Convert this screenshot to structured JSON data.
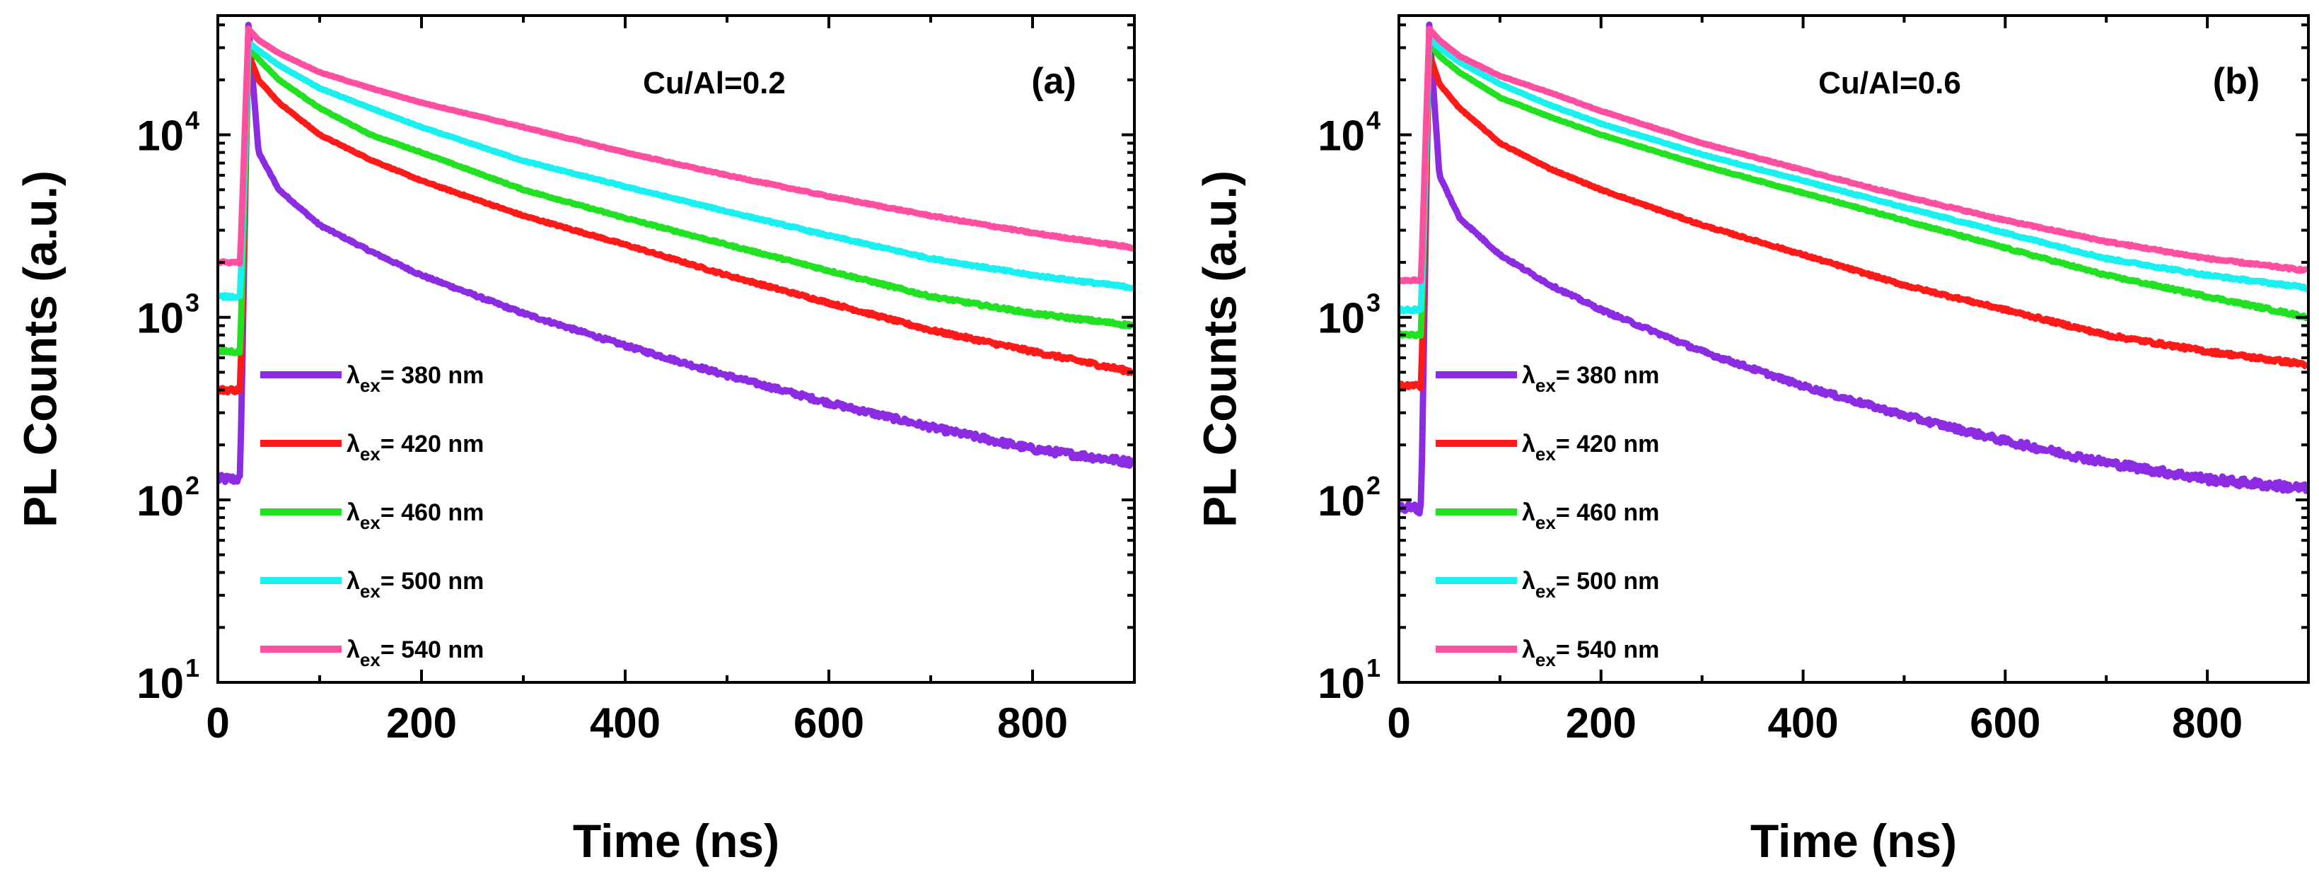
{
  "chart_data": [
    {
      "type": "line",
      "panel_label": "(a)",
      "annotation": "Cu/Al=0.2",
      "xlabel": "Time (ns)",
      "ylabel": "PL Counts (a.u.)",
      "yscale": "log",
      "xlim": [
        0,
        900
      ],
      "ylim": [
        10,
        45000
      ],
      "xticks": [
        {
          "value": 0,
          "label": "0"
        },
        {
          "value": 200,
          "label": "200"
        },
        {
          "value": 400,
          "label": "400"
        },
        {
          "value": 600,
          "label": "600"
        },
        {
          "value": 800,
          "label": "800"
        }
      ],
      "yticks": [
        {
          "value": 10,
          "base": "10",
          "exp": "1"
        },
        {
          "value": 100,
          "base": "10",
          "exp": "2"
        },
        {
          "value": 1000,
          "base": "10",
          "exp": "3"
        },
        {
          "value": 10000,
          "base": "10",
          "exp": "4"
        }
      ],
      "series": [
        {
          "name_prefix": "λ",
          "name_sub": "ex",
          "name_rest": "= 380 nm",
          "color": "#8B2BE2",
          "baseline": 130,
          "peak": 40000,
          "rise_start": 22,
          "rise_end": 29,
          "x": [
            30,
            40,
            60,
            100,
            150,
            200,
            300,
            400,
            500,
            600,
            700,
            800,
            900
          ],
          "values": [
            40000,
            8000,
            5000,
            3200,
            2300,
            1700,
            1050,
            700,
            480,
            340,
            250,
            190,
            160
          ]
        },
        {
          "name_prefix": "λ",
          "name_sub": "ex",
          "name_rest": "= 420 nm",
          "color": "#FF1A1A",
          "baseline": 400,
          "peak": 28000,
          "rise_start": 22,
          "rise_end": 29,
          "x": [
            30,
            40,
            60,
            100,
            150,
            200,
            300,
            400,
            500,
            600,
            700,
            800,
            900
          ],
          "values": [
            28000,
            20000,
            15000,
            10000,
            7300,
            5600,
            3600,
            2500,
            1700,
            1200,
            850,
            650,
            500
          ]
        },
        {
          "name_prefix": "λ",
          "name_sub": "ex",
          "name_rest": "= 460 nm",
          "color": "#22E022",
          "baseline": 650,
          "peak": 30000,
          "rise_start": 22,
          "rise_end": 29,
          "x": [
            30,
            40,
            60,
            100,
            150,
            200,
            300,
            400,
            500,
            600,
            700,
            800,
            900
          ],
          "values": [
            30000,
            26000,
            20000,
            14000,
            10000,
            8000,
            5000,
            3500,
            2500,
            1800,
            1300,
            1050,
            900
          ]
        },
        {
          "name_prefix": "λ",
          "name_sub": "ex",
          "name_rest": "= 500 nm",
          "color": "#1AF0F0",
          "baseline": 1300,
          "peak": 32000,
          "rise_start": 22,
          "rise_end": 29,
          "x": [
            30,
            40,
            60,
            100,
            150,
            200,
            300,
            400,
            500,
            600,
            700,
            800,
            900
          ],
          "values": [
            32000,
            29000,
            24000,
            18000,
            14000,
            11000,
            7200,
            5200,
            3800,
            2800,
            2100,
            1700,
            1450
          ]
        },
        {
          "name_prefix": "λ",
          "name_sub": "ex",
          "name_rest": "= 540 nm",
          "color": "#FF4FA0",
          "baseline": 2000,
          "peak": 38000,
          "rise_start": 22,
          "rise_end": 29,
          "x": [
            30,
            40,
            60,
            100,
            150,
            200,
            300,
            400,
            500,
            600,
            700,
            800,
            900
          ],
          "values": [
            38000,
            33000,
            28000,
            22000,
            18000,
            15000,
            11000,
            8000,
            6000,
            4600,
            3600,
            2900,
            2400
          ]
        }
      ]
    },
    {
      "type": "line",
      "panel_label": "(b)",
      "annotation": "Cu/Al=0.6",
      "xlabel": "Time (ns)",
      "ylabel": "PL Counts (a.u.)",
      "yscale": "log",
      "xlim": [
        0,
        900
      ],
      "ylim": [
        10,
        45000
      ],
      "xticks": [
        {
          "value": 0,
          "label": "0"
        },
        {
          "value": 200,
          "label": "200"
        },
        {
          "value": 400,
          "label": "400"
        },
        {
          "value": 600,
          "label": "600"
        },
        {
          "value": 800,
          "label": "800"
        }
      ],
      "yticks": [
        {
          "value": 10,
          "base": "10",
          "exp": "1"
        },
        {
          "value": 100,
          "base": "10",
          "exp": "2"
        },
        {
          "value": 1000,
          "base": "10",
          "exp": "3"
        },
        {
          "value": 10000,
          "base": "10",
          "exp": "4"
        }
      ],
      "series": [
        {
          "name_prefix": "λ",
          "name_sub": "ex",
          "name_rest": "= 380 nm",
          "color": "#8B2BE2",
          "baseline": 90,
          "peak": 40000,
          "rise_start": 22,
          "rise_end": 29,
          "x": [
            30,
            40,
            60,
            100,
            150,
            200,
            300,
            400,
            500,
            600,
            700,
            800,
            900
          ],
          "values": [
            40000,
            6000,
            3500,
            2200,
            1500,
            1100,
            650,
            420,
            290,
            210,
            160,
            130,
            115
          ]
        },
        {
          "name_prefix": "λ",
          "name_sub": "ex",
          "name_rest": "= 420 nm",
          "color": "#FF1A1A",
          "baseline": 420,
          "peak": 28000,
          "rise_start": 22,
          "rise_end": 29,
          "x": [
            30,
            40,
            60,
            100,
            150,
            200,
            300,
            400,
            500,
            600,
            700,
            800,
            900
          ],
          "values": [
            28000,
            19000,
            14000,
            9000,
            6500,
            5000,
            3200,
            2200,
            1500,
            1100,
            800,
            650,
            550
          ]
        },
        {
          "name_prefix": "λ",
          "name_sub": "ex",
          "name_rest": "= 460 nm",
          "color": "#22E022",
          "baseline": 800,
          "peak": 32000,
          "rise_start": 22,
          "rise_end": 29,
          "x": [
            30,
            40,
            60,
            100,
            150,
            200,
            300,
            400,
            500,
            600,
            700,
            800,
            900
          ],
          "values": [
            32000,
            27000,
            22000,
            16000,
            12500,
            10000,
            6800,
            4800,
            3400,
            2400,
            1700,
            1300,
            1000
          ]
        },
        {
          "name_prefix": "λ",
          "name_sub": "ex",
          "name_rest": "= 500 nm",
          "color": "#1AF0F0",
          "baseline": 1100,
          "peak": 34000,
          "rise_start": 22,
          "rise_end": 29,
          "x": [
            30,
            40,
            60,
            100,
            150,
            200,
            300,
            400,
            500,
            600,
            700,
            800,
            900
          ],
          "values": [
            34000,
            30000,
            25000,
            19000,
            14500,
            11500,
            7800,
            5600,
            4000,
            2900,
            2100,
            1700,
            1450
          ]
        },
        {
          "name_prefix": "λ",
          "name_sub": "ex",
          "name_rest": "= 540 nm",
          "color": "#FF4FA0",
          "baseline": 1600,
          "peak": 38000,
          "rise_start": 22,
          "rise_end": 29,
          "x": [
            30,
            40,
            60,
            100,
            150,
            200,
            300,
            400,
            500,
            600,
            700,
            800,
            900
          ],
          "values": [
            38000,
            33000,
            27000,
            21000,
            17000,
            13500,
            9000,
            6400,
            4600,
            3400,
            2600,
            2100,
            1800
          ]
        }
      ]
    }
  ]
}
